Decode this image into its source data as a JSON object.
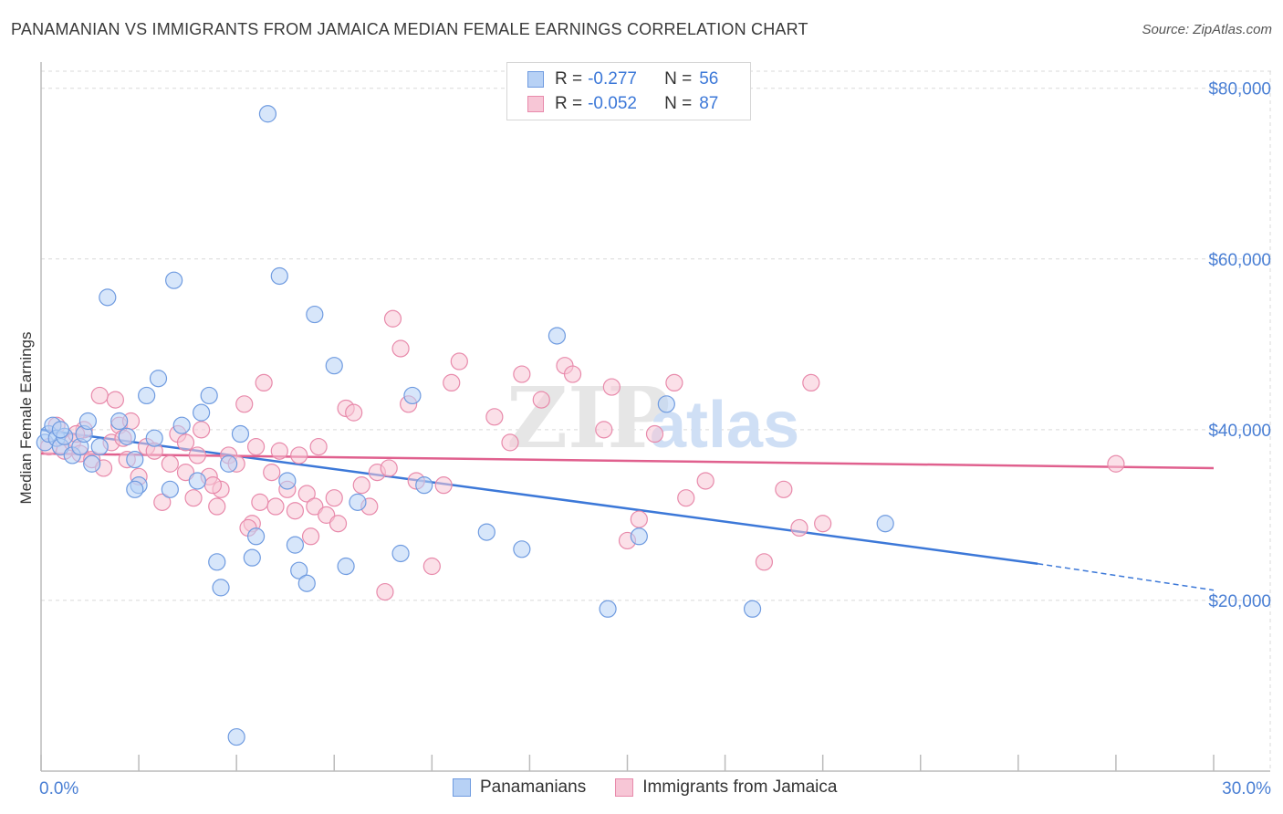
{
  "title": "PANAMANIAN VS IMMIGRANTS FROM JAMAICA MEDIAN FEMALE EARNINGS CORRELATION CHART",
  "source": "Source: ZipAtlas.com",
  "watermark": {
    "zip": "ZIP",
    "atlas": "atlas"
  },
  "colors": {
    "blue": "#3c78d8",
    "blue_fill": "#b7d1f5",
    "pink": "#e0608e",
    "pink_fill": "#f7c6d6",
    "grid": "#d9d9d9",
    "axis_text": "#4a7fd4"
  },
  "legend": {
    "rows": [
      {
        "r_label": "R =",
        "r_value": "-0.277",
        "n_label": "N =",
        "n_value": "56"
      },
      {
        "r_label": "R =",
        "r_value": "-0.052",
        "n_label": "N =",
        "n_value": "87"
      }
    ]
  },
  "bottom_legend": [
    "Panamanians",
    "Immigrants from Jamaica"
  ],
  "chart_data": {
    "type": "scatter",
    "ylabel": "Median Female Earnings",
    "xlim": [
      0,
      30
    ],
    "ylim": [
      0,
      82000
    ],
    "x_tick_labels": [
      "0.0%",
      "30.0%"
    ],
    "y_ticks": [
      20000,
      40000,
      60000,
      80000
    ],
    "y_tick_labels": [
      "$20,000",
      "$40,000",
      "$60,000",
      "$80,000"
    ],
    "grid": true,
    "series": [
      {
        "name": "Panamanians",
        "color": "#3c78d8",
        "points": [
          [
            0.1,
            38500
          ],
          [
            0.2,
            39500
          ],
          [
            0.3,
            40500
          ],
          [
            0.4,
            39000
          ],
          [
            0.5,
            38000
          ],
          [
            0.6,
            39200
          ],
          [
            0.8,
            37000
          ],
          [
            1.0,
            38000
          ],
          [
            1.1,
            39500
          ],
          [
            1.2,
            41000
          ],
          [
            1.5,
            38000
          ],
          [
            1.7,
            55500
          ],
          [
            2.0,
            41000
          ],
          [
            2.2,
            39200
          ],
          [
            2.4,
            36500
          ],
          [
            2.5,
            33500
          ],
          [
            2.7,
            44000
          ],
          [
            2.9,
            39000
          ],
          [
            3.0,
            46000
          ],
          [
            3.3,
            33000
          ],
          [
            3.4,
            57500
          ],
          [
            3.6,
            40500
          ],
          [
            4.0,
            34000
          ],
          [
            4.1,
            42000
          ],
          [
            4.3,
            44000
          ],
          [
            4.5,
            24500
          ],
          [
            4.6,
            21500
          ],
          [
            4.8,
            36000
          ],
          [
            5.0,
            4000
          ],
          [
            5.1,
            39500
          ],
          [
            5.4,
            25000
          ],
          [
            5.5,
            27500
          ],
          [
            5.8,
            77000
          ],
          [
            6.1,
            58000
          ],
          [
            6.3,
            34000
          ],
          [
            6.5,
            26500
          ],
          [
            6.6,
            23500
          ],
          [
            6.8,
            22000
          ],
          [
            7.0,
            53500
          ],
          [
            7.5,
            47500
          ],
          [
            7.8,
            24000
          ],
          [
            8.1,
            31500
          ],
          [
            9.2,
            25500
          ],
          [
            9.5,
            44000
          ],
          [
            9.8,
            33500
          ],
          [
            11.4,
            28000
          ],
          [
            12.3,
            26000
          ],
          [
            13.2,
            51000
          ],
          [
            14.5,
            19000
          ],
          [
            15.3,
            27500
          ],
          [
            16.0,
            43000
          ],
          [
            18.2,
            19000
          ],
          [
            21.6,
            29000
          ],
          [
            2.4,
            33000
          ],
          [
            0.5,
            40000
          ],
          [
            1.3,
            36000
          ]
        ]
      },
      {
        "name": "Immigrants from Jamaica",
        "color": "#e0608e",
        "points": [
          [
            0.2,
            38000
          ],
          [
            0.4,
            40500
          ],
          [
            0.6,
            37500
          ],
          [
            0.8,
            38500
          ],
          [
            1.0,
            37200
          ],
          [
            1.1,
            40000
          ],
          [
            1.3,
            36500
          ],
          [
            1.5,
            44000
          ],
          [
            1.6,
            35500
          ],
          [
            1.8,
            38500
          ],
          [
            2.0,
            40500
          ],
          [
            2.1,
            39000
          ],
          [
            2.3,
            41000
          ],
          [
            2.5,
            34500
          ],
          [
            2.7,
            38000
          ],
          [
            2.9,
            37500
          ],
          [
            3.1,
            31500
          ],
          [
            3.3,
            36000
          ],
          [
            3.5,
            39500
          ],
          [
            3.7,
            38500
          ],
          [
            3.9,
            32000
          ],
          [
            4.0,
            37000
          ],
          [
            4.1,
            40000
          ],
          [
            4.3,
            34500
          ],
          [
            4.5,
            31000
          ],
          [
            4.6,
            33000
          ],
          [
            4.8,
            37000
          ],
          [
            5.0,
            36000
          ],
          [
            5.2,
            43000
          ],
          [
            5.4,
            29000
          ],
          [
            5.5,
            38000
          ],
          [
            5.6,
            31500
          ],
          [
            5.7,
            45500
          ],
          [
            5.9,
            35000
          ],
          [
            6.0,
            31000
          ],
          [
            6.1,
            37500
          ],
          [
            6.3,
            33000
          ],
          [
            6.5,
            30500
          ],
          [
            6.6,
            37000
          ],
          [
            6.8,
            32500
          ],
          [
            7.0,
            31000
          ],
          [
            7.1,
            38000
          ],
          [
            7.3,
            30000
          ],
          [
            7.5,
            32000
          ],
          [
            7.6,
            29000
          ],
          [
            7.8,
            42500
          ],
          [
            8.0,
            42000
          ],
          [
            8.2,
            33500
          ],
          [
            8.4,
            31000
          ],
          [
            8.6,
            35000
          ],
          [
            8.8,
            21000
          ],
          [
            9.0,
            53000
          ],
          [
            9.2,
            49500
          ],
          [
            9.4,
            43000
          ],
          [
            9.6,
            34000
          ],
          [
            10.0,
            24000
          ],
          [
            10.3,
            33500
          ],
          [
            10.5,
            45500
          ],
          [
            10.7,
            48000
          ],
          [
            11.6,
            41500
          ],
          [
            12.3,
            46500
          ],
          [
            12.8,
            43500
          ],
          [
            13.4,
            47500
          ],
          [
            13.6,
            46500
          ],
          [
            14.4,
            40000
          ],
          [
            14.6,
            45000
          ],
          [
            15.0,
            27000
          ],
          [
            15.3,
            29500
          ],
          [
            15.7,
            39500
          ],
          [
            16.2,
            45500
          ],
          [
            16.5,
            32000
          ],
          [
            18.5,
            24500
          ],
          [
            19.0,
            33000
          ],
          [
            19.4,
            28500
          ],
          [
            19.7,
            45500
          ],
          [
            20.0,
            29000
          ],
          [
            27.5,
            36000
          ],
          [
            1.9,
            43500
          ],
          [
            3.7,
            35000
          ],
          [
            6.9,
            27500
          ],
          [
            0.9,
            39500
          ],
          [
            2.2,
            36500
          ],
          [
            4.4,
            33500
          ],
          [
            5.3,
            28500
          ],
          [
            8.9,
            35500
          ],
          [
            12.0,
            38500
          ],
          [
            17.0,
            34000
          ]
        ]
      }
    ],
    "trendlines": [
      {
        "series": "Panamanians",
        "x": [
          0,
          25.5
        ],
        "y": [
          40000,
          24300
        ],
        "dashed_extension_x": [
          25.5,
          30
        ],
        "dashed_extension_y": [
          24300,
          21200
        ]
      },
      {
        "series": "Immigrants from Jamaica",
        "x": [
          0,
          30
        ],
        "y": [
          37200,
          35500
        ]
      }
    ]
  }
}
